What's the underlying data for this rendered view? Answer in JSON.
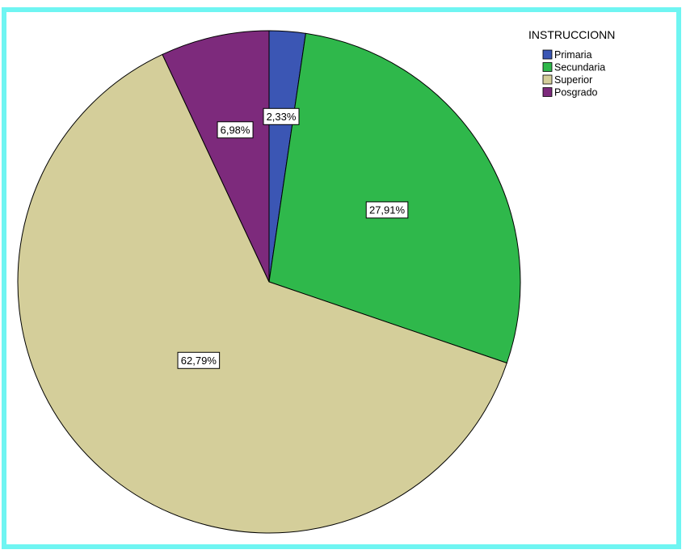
{
  "chart_data": {
    "type": "pie",
    "legend_title": "INSTRUCCIONN",
    "legend_position": "top-right",
    "slices": [
      {
        "name": "Primaria",
        "value": 2.33,
        "label": "2,33%",
        "color": "#3b56b4"
      },
      {
        "name": "Secundaria",
        "value": 27.91,
        "label": "27,91%",
        "color": "#2fb84b"
      },
      {
        "name": "Superior",
        "value": 62.79,
        "label": "62,79%",
        "color": "#d4ce9a"
      },
      {
        "name": "Posgrado",
        "value": 6.98,
        "label": "6,98%",
        "color": "#7d2a7c"
      }
    ]
  },
  "frame_color": "#6ff5f2"
}
